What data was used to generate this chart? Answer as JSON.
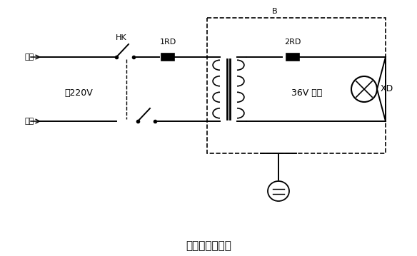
{
  "title": "安全低压变压器",
  "title_fontsize": 11,
  "background_color": "#ffffff",
  "line_color": "#000000",
  "text_220v": "～220V",
  "text_36v": "36V 以下",
  "text_hk": "HK",
  "text_1rd": "1RD",
  "text_2rd": "2RD",
  "text_xd": "XD",
  "text_b": "B",
  "text_phase": "相线",
  "text_neutral": "零线",
  "figsize": [
    5.84,
    3.59
  ],
  "dpi": 100
}
